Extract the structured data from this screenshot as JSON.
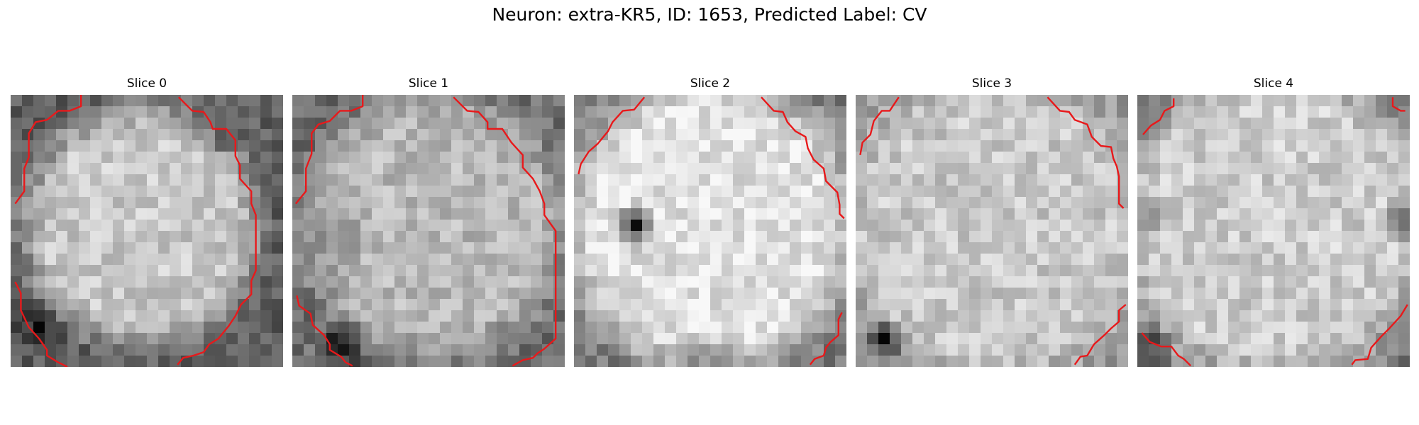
{
  "figure": {
    "title": "Neuron: extra-KR5, ID: 1653, Predicted Label: CV"
  },
  "contour_color": "#e8191b",
  "colormap": "grayscale",
  "panels": [
    {
      "title": "Slice 0"
    },
    {
      "title": "Slice 1"
    },
    {
      "title": "Slice 2"
    },
    {
      "title": "Slice 3"
    },
    {
      "title": "Slice 4"
    }
  ]
}
